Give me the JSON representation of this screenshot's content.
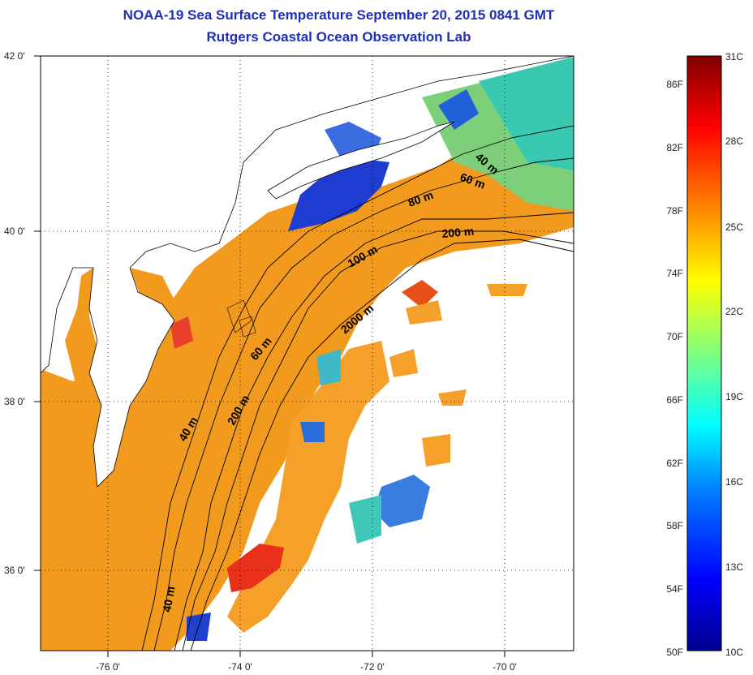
{
  "header": {
    "title": "NOAA-19 Sea Surface Temperature September 20, 2015 0841 GMT",
    "subtitle": "Rutgers Coastal Ocean Observation Lab"
  },
  "map": {
    "lat_ticks": [
      "42 0'",
      "40 0'",
      "38 0'",
      "36 0'"
    ],
    "lon_ticks": [
      "-76 0'",
      "-74 0'",
      "-72 0'",
      "-70 0'"
    ],
    "isobath_labels": [
      "40 m",
      "60 m",
      "80 m",
      "200 m",
      "100 m",
      "2000 m",
      "60 m",
      "40 m",
      "200 m",
      "40 m"
    ]
  },
  "colorbar": {
    "fahrenheit": [
      "86F",
      "82F",
      "78F",
      "74F",
      "70F",
      "66F",
      "62F",
      "58F",
      "54F",
      "50F"
    ],
    "celsius": [
      "31C",
      "28C",
      "25C",
      "22C",
      "19C",
      "16C",
      "13C",
      "10C"
    ],
    "colors": [
      "#00008f",
      "#0000ff",
      "#0080ff",
      "#00ffff",
      "#80ff80",
      "#ffff00",
      "#ff8000",
      "#ff0000",
      "#800000"
    ]
  },
  "colors": {
    "title": "#1f2fb8",
    "warm_water": "#f29a1e",
    "hot_water": "#e8301a",
    "cool_water": "#1e3cd0",
    "mid_water": "#39c8b0"
  }
}
